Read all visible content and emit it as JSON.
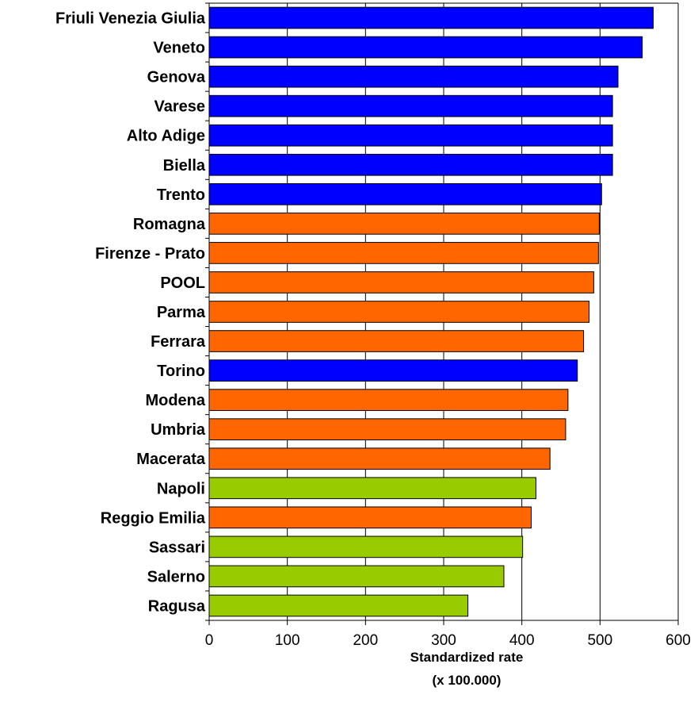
{
  "chart_data": {
    "type": "bar",
    "orientation": "horizontal",
    "categories": [
      "Friuli Venezia Giulia",
      "Veneto",
      "Genova",
      "Varese",
      "Alto Adige",
      "Biella",
      "Trento",
      "Romagna",
      "Firenze - Prato",
      "POOL",
      "Parma",
      "Ferrara",
      "Torino",
      "Modena",
      "Umbria",
      "Macerata",
      "Napoli",
      "Reggio Emilia",
      "Sassari",
      "Salerno",
      "Ragusa"
    ],
    "values": [
      568,
      554,
      523,
      516,
      516,
      516,
      502,
      499,
      498,
      492,
      486,
      479,
      471,
      459,
      456,
      436,
      418,
      412,
      401,
      377,
      331
    ],
    "bar_colors": [
      "#0000ff",
      "#0000ff",
      "#0000ff",
      "#0000ff",
      "#0000ff",
      "#0000ff",
      "#0000ff",
      "#ff6600",
      "#ff6600",
      "#ff6600",
      "#ff6600",
      "#ff6600",
      "#0000ff",
      "#ff6600",
      "#ff6600",
      "#ff6600",
      "#99cc00",
      "#ff6600",
      "#99cc00",
      "#99cc00",
      "#99cc00"
    ],
    "xlabel_lines": [
      "Standardized rate",
      "(x 100.000)"
    ],
    "xlim": [
      0,
      600
    ],
    "xticks": [
      0,
      100,
      200,
      300,
      400,
      500,
      600
    ],
    "grid": "vertical",
    "legend": "none"
  }
}
